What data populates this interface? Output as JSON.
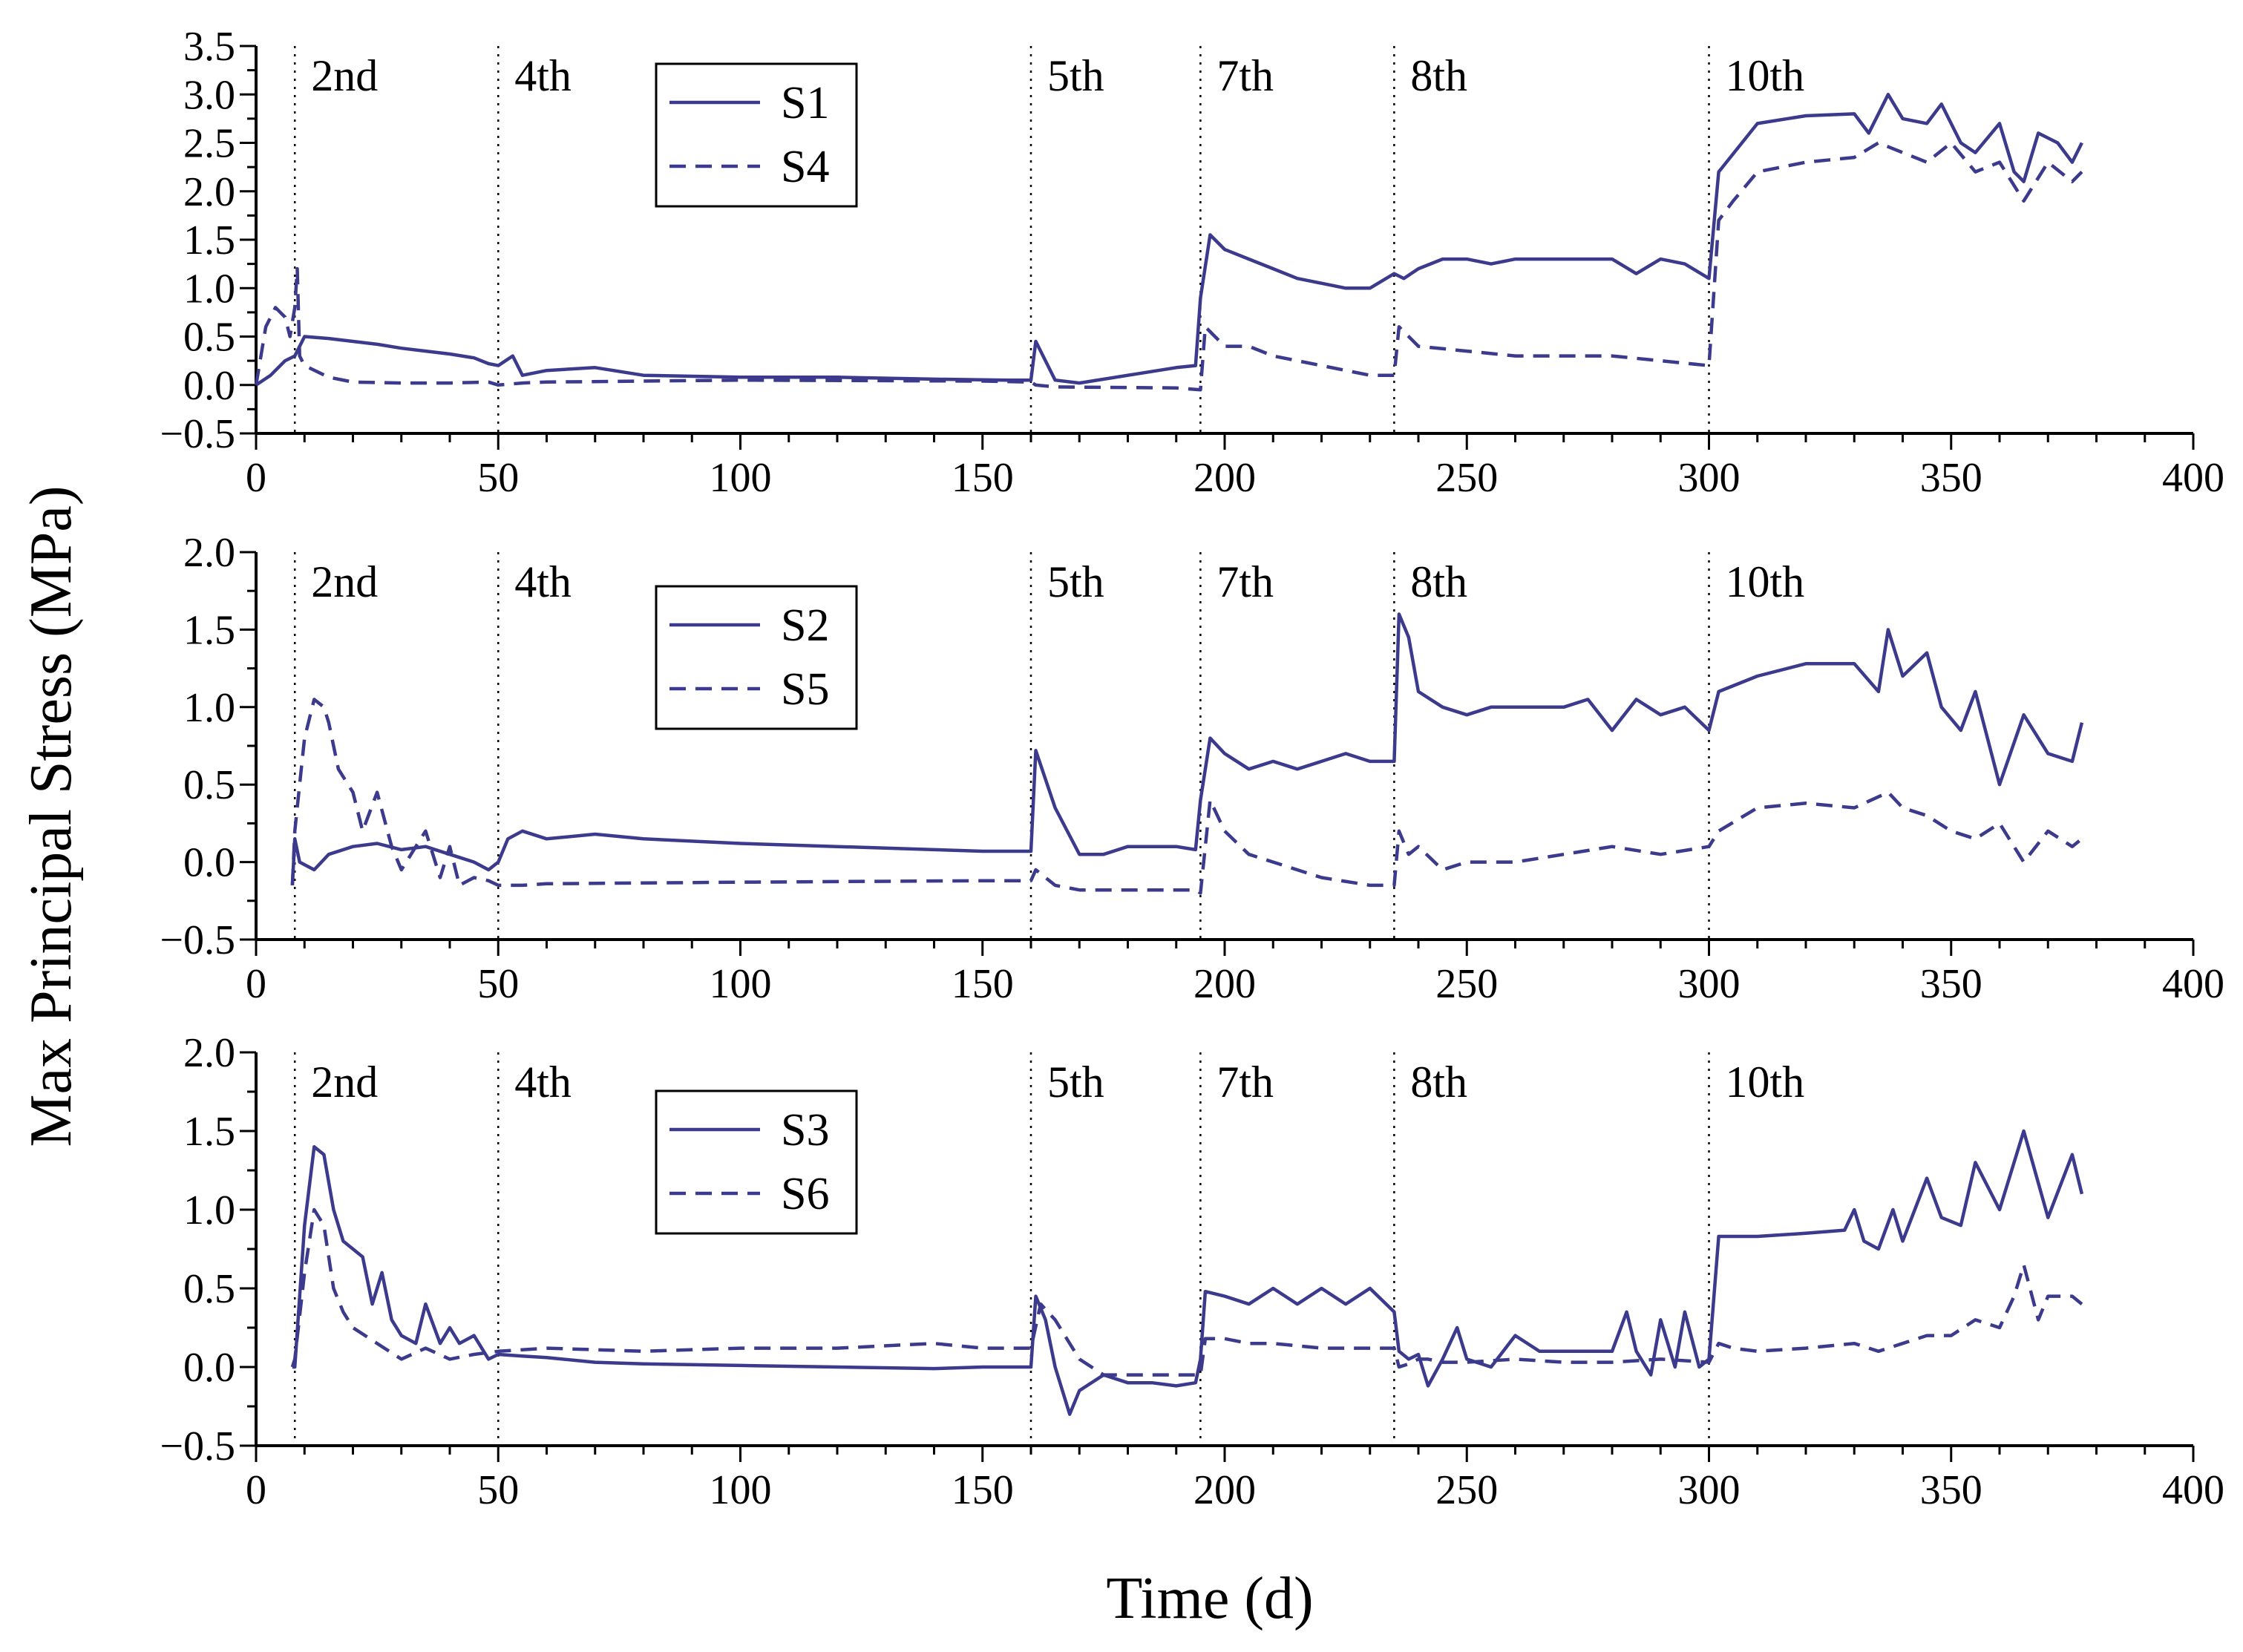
{
  "figure": {
    "ylabel": "Max Principal Stress (MPa)",
    "xlabel": "Time (d)",
    "series_color": "#3c3a8c"
  },
  "chart_data": [
    {
      "type": "line",
      "panel": "top",
      "xlim": [
        0,
        400
      ],
      "ylim": [
        -0.5,
        3.5
      ],
      "xticks": [
        "0",
        "50",
        "100",
        "150",
        "200",
        "250",
        "300",
        "350",
        "400"
      ],
      "yticks": [
        "−0.5",
        "0.0",
        "0.5",
        "1.0",
        "1.5",
        "2.0",
        "2.5",
        "3.0",
        "3.5"
      ],
      "stages": [
        {
          "x": 8,
          "label": "2nd"
        },
        {
          "x": 50,
          "label": "4th"
        },
        {
          "x": 160,
          "label": "5th"
        },
        {
          "x": 195,
          "label": "7th"
        },
        {
          "x": 235,
          "label": "8th"
        },
        {
          "x": 300,
          "label": "10th"
        }
      ],
      "series": [
        {
          "name": "S1",
          "style": "solid",
          "x": [
            0,
            3,
            6,
            8,
            10,
            15,
            20,
            25,
            30,
            35,
            40,
            45,
            48,
            50,
            53,
            55,
            60,
            70,
            80,
            100,
            120,
            140,
            155,
            160,
            161,
            165,
            170,
            180,
            190,
            194,
            195,
            197,
            200,
            205,
            210,
            215,
            220,
            225,
            230,
            235,
            237,
            240,
            245,
            250,
            255,
            260,
            270,
            280,
            285,
            290,
            295,
            300,
            302,
            310,
            320,
            330,
            333,
            337,
            340,
            345,
            348,
            352,
            355,
            360,
            363,
            365,
            368,
            372,
            375,
            377
          ],
          "y": [
            0.0,
            0.1,
            0.25,
            0.3,
            0.5,
            0.48,
            0.45,
            0.42,
            0.38,
            0.35,
            0.32,
            0.28,
            0.22,
            0.2,
            0.3,
            0.1,
            0.15,
            0.18,
            0.1,
            0.08,
            0.08,
            0.06,
            0.05,
            0.05,
            0.45,
            0.05,
            0.02,
            0.1,
            0.18,
            0.2,
            0.9,
            1.55,
            1.4,
            1.3,
            1.2,
            1.1,
            1.05,
            1.0,
            1.0,
            1.15,
            1.1,
            1.2,
            1.3,
            1.3,
            1.25,
            1.3,
            1.3,
            1.3,
            1.15,
            1.3,
            1.25,
            1.1,
            2.2,
            2.7,
            2.78,
            2.8,
            2.6,
            3.0,
            2.75,
            2.7,
            2.9,
            2.5,
            2.4,
            2.7,
            2.2,
            2.1,
            2.6,
            2.5,
            2.3,
            2.5
          ]
        },
        {
          "name": "S4",
          "style": "dashed",
          "x": [
            0,
            2,
            4,
            6,
            7,
            8,
            8.5,
            9,
            10,
            15,
            20,
            30,
            40,
            48,
            50,
            55,
            60,
            100,
            150,
            160,
            161,
            165,
            190,
            195,
            196,
            200,
            205,
            210,
            220,
            230,
            235,
            236,
            240,
            250,
            260,
            270,
            280,
            290,
            300,
            302,
            305,
            310,
            320,
            330,
            335,
            340,
            345,
            350,
            355,
            360,
            365,
            370,
            375,
            377
          ],
          "y": [
            0.0,
            0.6,
            0.8,
            0.7,
            0.5,
            0.8,
            1.2,
            0.3,
            0.2,
            0.08,
            0.03,
            0.02,
            0.02,
            0.03,
            0.0,
            0.02,
            0.03,
            0.05,
            0.04,
            0.03,
            0.0,
            -0.02,
            -0.03,
            -0.05,
            0.6,
            0.4,
            0.4,
            0.3,
            0.2,
            0.1,
            0.1,
            0.6,
            0.4,
            0.35,
            0.3,
            0.3,
            0.3,
            0.25,
            0.2,
            1.7,
            1.9,
            2.2,
            2.3,
            2.35,
            2.5,
            2.4,
            2.3,
            2.5,
            2.2,
            2.3,
            1.9,
            2.3,
            2.1,
            2.2
          ]
        }
      ],
      "legend": [
        "S1",
        "S4"
      ]
    },
    {
      "type": "line",
      "panel": "middle",
      "xlim": [
        0,
        400
      ],
      "ylim": [
        -0.5,
        2.0
      ],
      "xticks": [
        "0",
        "50",
        "100",
        "150",
        "200",
        "250",
        "300",
        "350",
        "400"
      ],
      "yticks": [
        "−0.5",
        "0.0",
        "0.5",
        "1.0",
        "1.5",
        "2.0"
      ],
      "stages": [
        {
          "x": 8,
          "label": "2nd"
        },
        {
          "x": 50,
          "label": "4th"
        },
        {
          "x": 160,
          "label": "5th"
        },
        {
          "x": 195,
          "label": "7th"
        },
        {
          "x": 235,
          "label": "8th"
        },
        {
          "x": 300,
          "label": "10th"
        }
      ],
      "series": [
        {
          "name": "S2",
          "style": "solid",
          "x": [
            7.5,
            8,
            9,
            12,
            15,
            20,
            25,
            30,
            35,
            40,
            45,
            48,
            50,
            52,
            55,
            60,
            70,
            80,
            100,
            120,
            140,
            150,
            155,
            160,
            161,
            165,
            170,
            175,
            180,
            190,
            194,
            195,
            197,
            200,
            205,
            210,
            215,
            220,
            225,
            230,
            235,
            236,
            238,
            240,
            245,
            250,
            255,
            260,
            270,
            275,
            280,
            285,
            290,
            295,
            300,
            302,
            310,
            320,
            325,
            330,
            335,
            337,
            340,
            345,
            348,
            352,
            355,
            360,
            365,
            370,
            375,
            377
          ],
          "y": [
            -0.15,
            0.15,
            0.0,
            -0.05,
            0.05,
            0.1,
            0.12,
            0.08,
            0.1,
            0.05,
            0.0,
            -0.05,
            0.0,
            0.15,
            0.2,
            0.15,
            0.18,
            0.15,
            0.12,
            0.1,
            0.08,
            0.07,
            0.07,
            0.07,
            0.72,
            0.35,
            0.05,
            0.05,
            0.1,
            0.1,
            0.08,
            0.4,
            0.8,
            0.7,
            0.6,
            0.65,
            0.6,
            0.65,
            0.7,
            0.65,
            0.65,
            1.6,
            1.45,
            1.1,
            1.0,
            0.95,
            1.0,
            1.0,
            1.0,
            1.05,
            0.85,
            1.05,
            0.95,
            1.0,
            0.85,
            1.1,
            1.2,
            1.28,
            1.28,
            1.28,
            1.1,
            1.5,
            1.2,
            1.35,
            1.0,
            0.85,
            1.1,
            0.5,
            0.95,
            0.7,
            0.65,
            0.9
          ]
        },
        {
          "name": "S5",
          "style": "dashed",
          "x": [
            7.5,
            8,
            9,
            10,
            12,
            14,
            15,
            17,
            20,
            22,
            25,
            28,
            30,
            33,
            35,
            38,
            40,
            42,
            45,
            48,
            50,
            55,
            60,
            100,
            150,
            160,
            161,
            165,
            170,
            190,
            194,
            195,
            197,
            200,
            205,
            210,
            220,
            230,
            235,
            236,
            238,
            240,
            245,
            250,
            260,
            270,
            280,
            290,
            300,
            302,
            310,
            320,
            330,
            337,
            340,
            345,
            350,
            355,
            360,
            365,
            370,
            375,
            377
          ],
          "y": [
            -0.15,
            0.2,
            0.5,
            0.8,
            1.05,
            1.0,
            0.9,
            0.6,
            0.45,
            0.2,
            0.45,
            0.1,
            -0.05,
            0.1,
            0.2,
            -0.1,
            0.1,
            -0.15,
            -0.1,
            -0.12,
            -0.15,
            -0.15,
            -0.14,
            -0.13,
            -0.12,
            -0.12,
            -0.05,
            -0.15,
            -0.18,
            -0.18,
            -0.18,
            -0.2,
            0.4,
            0.2,
            0.05,
            0.0,
            -0.1,
            -0.15,
            -0.15,
            0.2,
            0.05,
            0.1,
            -0.05,
            0.0,
            0.0,
            0.05,
            0.1,
            0.05,
            0.1,
            0.2,
            0.35,
            0.38,
            0.35,
            0.45,
            0.35,
            0.3,
            0.2,
            0.15,
            0.25,
            0.0,
            0.2,
            0.1,
            0.15
          ]
        }
      ],
      "legend": [
        "S2",
        "S5"
      ]
    },
    {
      "type": "line",
      "panel": "bottom",
      "xlim": [
        0,
        400
      ],
      "ylim": [
        -0.5,
        2.0
      ],
      "xticks": [
        "0",
        "50",
        "100",
        "150",
        "200",
        "250",
        "300",
        "350",
        "400"
      ],
      "yticks": [
        "−0.5",
        "0.0",
        "0.5",
        "1.0",
        "1.5",
        "2.0"
      ],
      "stages": [
        {
          "x": 8,
          "label": "2nd"
        },
        {
          "x": 50,
          "label": "4th"
        },
        {
          "x": 160,
          "label": "5th"
        },
        {
          "x": 195,
          "label": "7th"
        },
        {
          "x": 235,
          "label": "8th"
        },
        {
          "x": 300,
          "label": "10th"
        }
      ],
      "series": [
        {
          "name": "S3",
          "style": "solid",
          "x": [
            7.5,
            8,
            10,
            12,
            14,
            16,
            18,
            20,
            22,
            24,
            26,
            28,
            30,
            33,
            35,
            38,
            40,
            42,
            45,
            48,
            50,
            55,
            60,
            70,
            80,
            100,
            120,
            140,
            150,
            155,
            160,
            161,
            163,
            165,
            168,
            170,
            175,
            180,
            185,
            190,
            194,
            195,
            196,
            200,
            205,
            210,
            215,
            220,
            225,
            230,
            235,
            236,
            238,
            240,
            242,
            245,
            248,
            250,
            255,
            260,
            265,
            270,
            275,
            280,
            283,
            285,
            288,
            290,
            293,
            295,
            298,
            300,
            302,
            310,
            320,
            328,
            330,
            332,
            335,
            338,
            340,
            345,
            348,
            352,
            355,
            360,
            365,
            370,
            375,
            377
          ],
          "y": [
            0.0,
            0.0,
            0.9,
            1.4,
            1.35,
            1.0,
            0.8,
            0.75,
            0.7,
            0.4,
            0.6,
            0.3,
            0.2,
            0.15,
            0.4,
            0.15,
            0.25,
            0.15,
            0.2,
            0.05,
            0.08,
            0.07,
            0.06,
            0.03,
            0.02,
            0.01,
            0.0,
            -0.01,
            0.0,
            0.0,
            0.0,
            0.45,
            0.3,
            0.0,
            -0.3,
            -0.15,
            -0.05,
            -0.1,
            -0.1,
            -0.12,
            -0.1,
            0.05,
            0.48,
            0.45,
            0.4,
            0.5,
            0.4,
            0.5,
            0.4,
            0.5,
            0.35,
            0.1,
            0.05,
            0.08,
            -0.12,
            0.05,
            0.25,
            0.05,
            0.0,
            0.2,
            0.1,
            0.1,
            0.1,
            0.1,
            0.35,
            0.1,
            -0.05,
            0.3,
            0.0,
            0.35,
            0.0,
            0.05,
            0.83,
            0.83,
            0.85,
            0.87,
            1.0,
            0.8,
            0.75,
            1.0,
            0.8,
            1.2,
            0.95,
            0.9,
            1.3,
            1.0,
            1.5,
            0.95,
            1.35,
            1.1
          ]
        },
        {
          "name": "S6",
          "style": "dashed",
          "x": [
            7.5,
            8,
            10,
            12,
            14,
            16,
            18,
            20,
            25,
            30,
            35,
            40,
            45,
            50,
            60,
            80,
            100,
            120,
            140,
            150,
            160,
            162,
            165,
            170,
            175,
            180,
            190,
            195,
            196,
            200,
            205,
            210,
            220,
            230,
            235,
            236,
            238,
            240,
            242,
            245,
            250,
            260,
            270,
            280,
            290,
            300,
            302,
            305,
            310,
            320,
            330,
            335,
            340,
            345,
            350,
            355,
            360,
            363,
            365,
            368,
            370,
            375,
            377
          ],
          "y": [
            0.0,
            0.05,
            0.6,
            1.0,
            0.9,
            0.5,
            0.35,
            0.25,
            0.15,
            0.05,
            0.12,
            0.05,
            0.08,
            0.1,
            0.12,
            0.1,
            0.12,
            0.12,
            0.15,
            0.12,
            0.12,
            0.4,
            0.3,
            0.05,
            -0.05,
            -0.05,
            -0.05,
            -0.05,
            0.18,
            0.18,
            0.15,
            0.15,
            0.12,
            0.12,
            0.12,
            0.0,
            0.02,
            0.05,
            0.05,
            0.03,
            0.03,
            0.05,
            0.03,
            0.03,
            0.05,
            0.03,
            0.15,
            0.12,
            0.1,
            0.12,
            0.15,
            0.1,
            0.15,
            0.2,
            0.2,
            0.3,
            0.25,
            0.45,
            0.65,
            0.3,
            0.45,
            0.45,
            0.4
          ]
        }
      ],
      "legend": [
        "S3",
        "S6"
      ]
    }
  ]
}
